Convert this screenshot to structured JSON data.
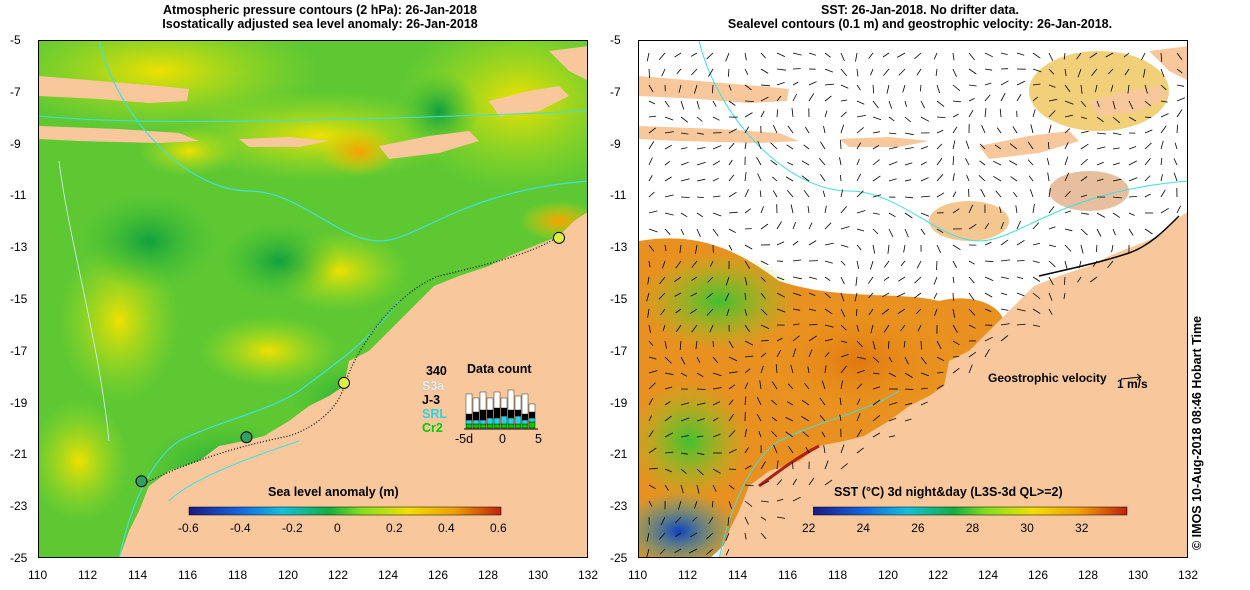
{
  "left_panel": {
    "title_line1": "Atmospheric pressure contours (2 hPa): 26-Jan-2018",
    "title_line2": "Isostatically adjusted sea level anomaly: 26-Jan-2018",
    "colorbar_title": "Sea level anomaly (m)",
    "colorbar_ticks": [
      "-0.6",
      "-0.4",
      "-0.2",
      "0",
      "0.2",
      "0.4",
      "0.6"
    ],
    "colorbar_range": [
      -0.6,
      0.6
    ],
    "data_count": {
      "title": "Data count",
      "total": "340",
      "missions": [
        {
          "name": "S3a",
          "color": "#ffffff"
        },
        {
          "name": "J-3",
          "color": "#000000"
        },
        {
          "name": "SRL",
          "color": "#30d0e0"
        },
        {
          "name": "Cr2",
          "color": "#00cc00"
        }
      ],
      "axis_ticks": [
        "-5d",
        "0",
        "5"
      ]
    },
    "tide_gauges": [
      {
        "lon": 114.1,
        "lat": -22.0
      },
      {
        "lon": 118.3,
        "lat": -20.3
      },
      {
        "lon": 122.2,
        "lat": -18.2
      },
      {
        "lon": 130.8,
        "lat": -12.6
      }
    ]
  },
  "right_panel": {
    "title_line1": "SST: 26-Jan-2018. No drifter data.",
    "title_line2": "Sealevel contours (0.1 m) and geostrophic velocity: 26-Jan-2018.",
    "colorbar_title": "SST (°C) 3d night&day (L3S-3d QL>=2)",
    "colorbar_ticks": [
      "22",
      "24",
      "26",
      "28",
      "30",
      "32"
    ],
    "colorbar_range": [
      22,
      33.5
    ],
    "velocity_label": "Geostrophic velocity",
    "velocity_scale": "1 m/s"
  },
  "axes": {
    "lon_ticks": [
      "110",
      "112",
      "114",
      "116",
      "118",
      "120",
      "122",
      "124",
      "126",
      "128",
      "130",
      "132"
    ],
    "lat_ticks": [
      "-5",
      "-7",
      "-9",
      "-11",
      "-13",
      "-15",
      "-17",
      "-19",
      "-21",
      "-23",
      "-25"
    ],
    "lon_range": [
      110,
      132
    ],
    "lat_range": [
      -25,
      -5
    ]
  },
  "credit": "© IMOS 10-Aug-2018 08:46 Hobart Time",
  "colors": {
    "land": "#f8c89c",
    "coast_line": "#40e0e0",
    "no_data": "#ffffff"
  }
}
